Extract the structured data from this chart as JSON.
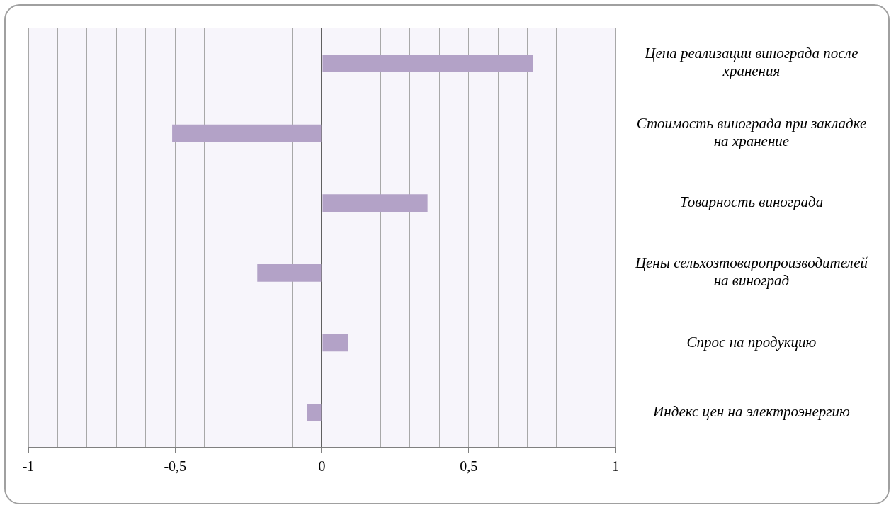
{
  "chart_data": {
    "type": "bar",
    "orientation": "horizontal",
    "categories": [
      "Цена реализации винограда после хранения",
      "Стоимость винограда при закладке на хранение",
      "Товарность винограда",
      "Цены сельхозтоваропроизводителей на виноград",
      "Спрос на продукцию",
      "Индекс цен на электроэнергию"
    ],
    "values": [
      0.72,
      -0.51,
      0.36,
      -0.22,
      0.09,
      -0.05
    ],
    "color": "#b3a2c7",
    "xlim": [
      -1,
      1
    ],
    "xticks": [
      -1,
      {
        "value": -0.9,
        "label": null
      },
      {
        "value": -0.8,
        "label": null
      },
      {
        "value": -0.7,
        "label": null
      },
      {
        "value": -0.6,
        "label": null
      },
      {
        "value": -0.5,
        "label": "-0,5"
      },
      {
        "value": -0.4,
        "label": null
      },
      {
        "value": -0.3,
        "label": null
      },
      {
        "value": -0.2,
        "label": null
      },
      {
        "value": -0.1,
        "label": null
      },
      0,
      {
        "value": 0.1,
        "label": null
      },
      {
        "value": 0.2,
        "label": null
      },
      {
        "value": 0.3,
        "label": null
      },
      {
        "value": 0.4,
        "label": null
      },
      {
        "value": 0.5,
        "label": "0,5"
      },
      {
        "value": 0.6,
        "label": null
      },
      {
        "value": 0.7,
        "label": null
      },
      {
        "value": 0.8,
        "label": null
      },
      {
        "value": 0.9,
        "label": null
      },
      1
    ],
    "grid": "x",
    "legend": false
  }
}
